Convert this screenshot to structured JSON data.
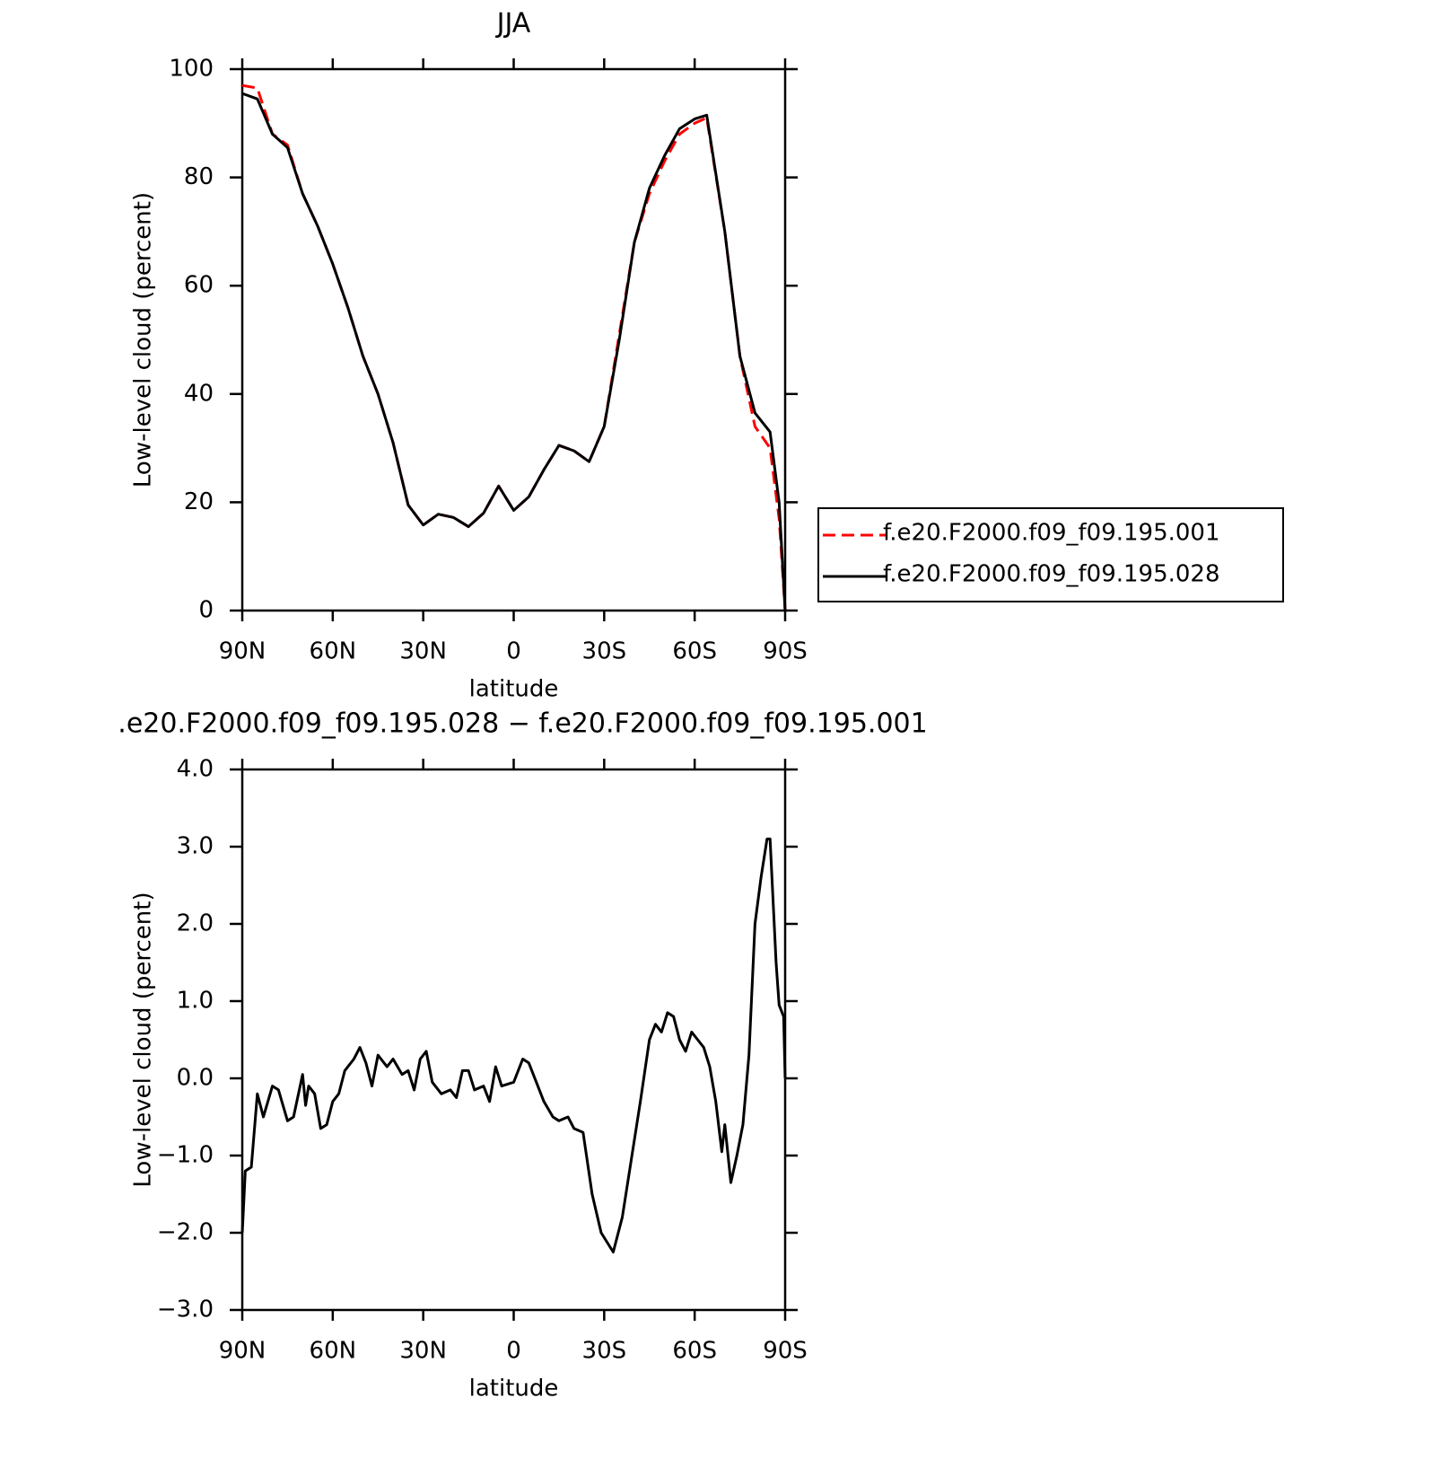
{
  "chart_data": [
    {
      "type": "line",
      "title": "JJA",
      "xlabel": "latitude",
      "ylabel": "Low-level cloud (percent)",
      "xlim": [
        90,
        -90
      ],
      "ylim": [
        0,
        100
      ],
      "xticks": [
        {
          "value": 90,
          "label": "90N"
        },
        {
          "value": 60,
          "label": "60N"
        },
        {
          "value": 30,
          "label": "30N"
        },
        0,
        {
          "value": -30,
          "label": "30S"
        },
        {
          "value": -60,
          "label": "60S"
        },
        {
          "value": -90,
          "label": "90S"
        }
      ],
      "yticks": [
        0,
        20,
        40,
        60,
        80,
        100
      ],
      "legend": "right",
      "x": [
        90,
        85,
        80,
        75,
        70,
        65,
        60,
        55,
        50,
        45,
        40,
        35,
        30,
        25,
        20,
        15,
        10,
        5,
        0,
        -5,
        -10,
        -15,
        -20,
        -25,
        -30,
        -35,
        -40,
        -45,
        -50,
        -55,
        -60,
        -64,
        -70,
        -75,
        -80,
        -85,
        -88,
        -90
      ],
      "series": [
        {
          "name": "f.e20.F2000.f09_f09.195.001",
          "color": "#ff0000",
          "dash": true,
          "values": [
            97,
            96.5,
            88,
            86,
            77,
            71,
            64,
            56,
            47,
            40,
            31,
            19.5,
            15.8,
            17.8,
            17.2,
            15.5,
            18,
            23,
            18.5,
            21,
            26,
            30.5,
            29.5,
            27.5,
            34,
            51,
            68,
            77,
            83,
            88,
            90,
            91,
            70,
            47,
            34,
            30,
            17,
            0
          ]
        },
        {
          "name": "f.e20.F2000.f09_f09.195.028",
          "color": "#000000",
          "dash": false,
          "values": [
            95.5,
            94.5,
            88,
            85.5,
            77,
            71,
            64,
            56,
            47,
            40,
            31,
            19.5,
            15.8,
            17.8,
            17.2,
            15.5,
            18,
            23,
            18.5,
            21,
            26,
            30.5,
            29.5,
            27.5,
            34,
            50,
            68,
            78,
            84,
            89,
            90.8,
            91.5,
            70,
            47,
            36.5,
            33,
            20,
            0
          ]
        }
      ]
    },
    {
      "type": "line",
      "title": ".e20.F2000.f09_f09.195.028 − f.e20.F2000.f09_f09.195.001",
      "xlabel": "latitude",
      "ylabel": "Low-level cloud (percent)",
      "xlim": [
        90,
        -90
      ],
      "ylim": [
        -3,
        4
      ],
      "xticks": [
        {
          "value": 90,
          "label": "90N"
        },
        {
          "value": 60,
          "label": "60N"
        },
        {
          "value": 30,
          "label": "30N"
        },
        0,
        {
          "value": -30,
          "label": "30S"
        },
        {
          "value": -60,
          "label": "60S"
        },
        {
          "value": -90,
          "label": "90S"
        }
      ],
      "yticks": [
        {
          "value": -3,
          "label": "−3.0"
        },
        {
          "value": -2,
          "label": "−2.0"
        },
        {
          "value": -1,
          "label": "−1.0"
        },
        {
          "value": 0,
          "label": "0.0"
        },
        {
          "value": 1,
          "label": "1.0"
        },
        {
          "value": 2,
          "label": "2.0"
        },
        {
          "value": 3,
          "label": "3.0"
        },
        {
          "value": 4,
          "label": "4.0"
        }
      ],
      "x": [
        90,
        89,
        87,
        85,
        83,
        80,
        78,
        75,
        73,
        70,
        69,
        68,
        66,
        64,
        62,
        60,
        58,
        56,
        53,
        51,
        49,
        47,
        45,
        42,
        40,
        37,
        35,
        33,
        31,
        29,
        27,
        24,
        21,
        19,
        17,
        15,
        13,
        10,
        8,
        6,
        4,
        0,
        -3,
        -5,
        -8,
        -10,
        -13,
        -15,
        -18,
        -20,
        -23,
        -26,
        -29,
        -33,
        -36,
        -40,
        -42,
        -45,
        -47,
        -49,
        -51,
        -53,
        -55,
        -57,
        -59,
        -61,
        -63,
        -65,
        -67,
        -69,
        -70,
        -72,
        -74,
        -76,
        -78,
        -80,
        -82,
        -84,
        -85,
        -87,
        -88,
        -89.5,
        -90
      ],
      "series": [
        {
          "name": "difference",
          "color": "#000000",
          "dash": false,
          "values": [
            -2.0,
            -1.2,
            -1.15,
            -0.2,
            -0.5,
            -0.1,
            -0.15,
            -0.55,
            -0.5,
            0.05,
            -0.35,
            -0.1,
            -0.2,
            -0.65,
            -0.6,
            -0.3,
            -0.2,
            0.1,
            0.25,
            0.4,
            0.2,
            -0.1,
            0.3,
            0.15,
            0.25,
            0.05,
            0.1,
            -0.15,
            0.25,
            0.35,
            -0.05,
            -0.2,
            -0.15,
            -0.25,
            0.1,
            0.1,
            -0.15,
            -0.1,
            -0.3,
            0.15,
            -0.1,
            -0.05,
            0.25,
            0.2,
            -0.1,
            -0.3,
            -0.5,
            -0.55,
            -0.5,
            -0.65,
            -0.7,
            -1.5,
            -2.0,
            -2.25,
            -1.8,
            -0.8,
            -0.3,
            0.5,
            0.7,
            0.6,
            0.85,
            0.8,
            0.5,
            0.35,
            0.6,
            0.5,
            0.4,
            0.15,
            -0.3,
            -0.95,
            -0.6,
            -1.35,
            -1.0,
            -0.6,
            0.3,
            2.0,
            2.6,
            3.1,
            3.1,
            1.5,
            0.95,
            0.8,
            0
          ]
        }
      ]
    }
  ]
}
